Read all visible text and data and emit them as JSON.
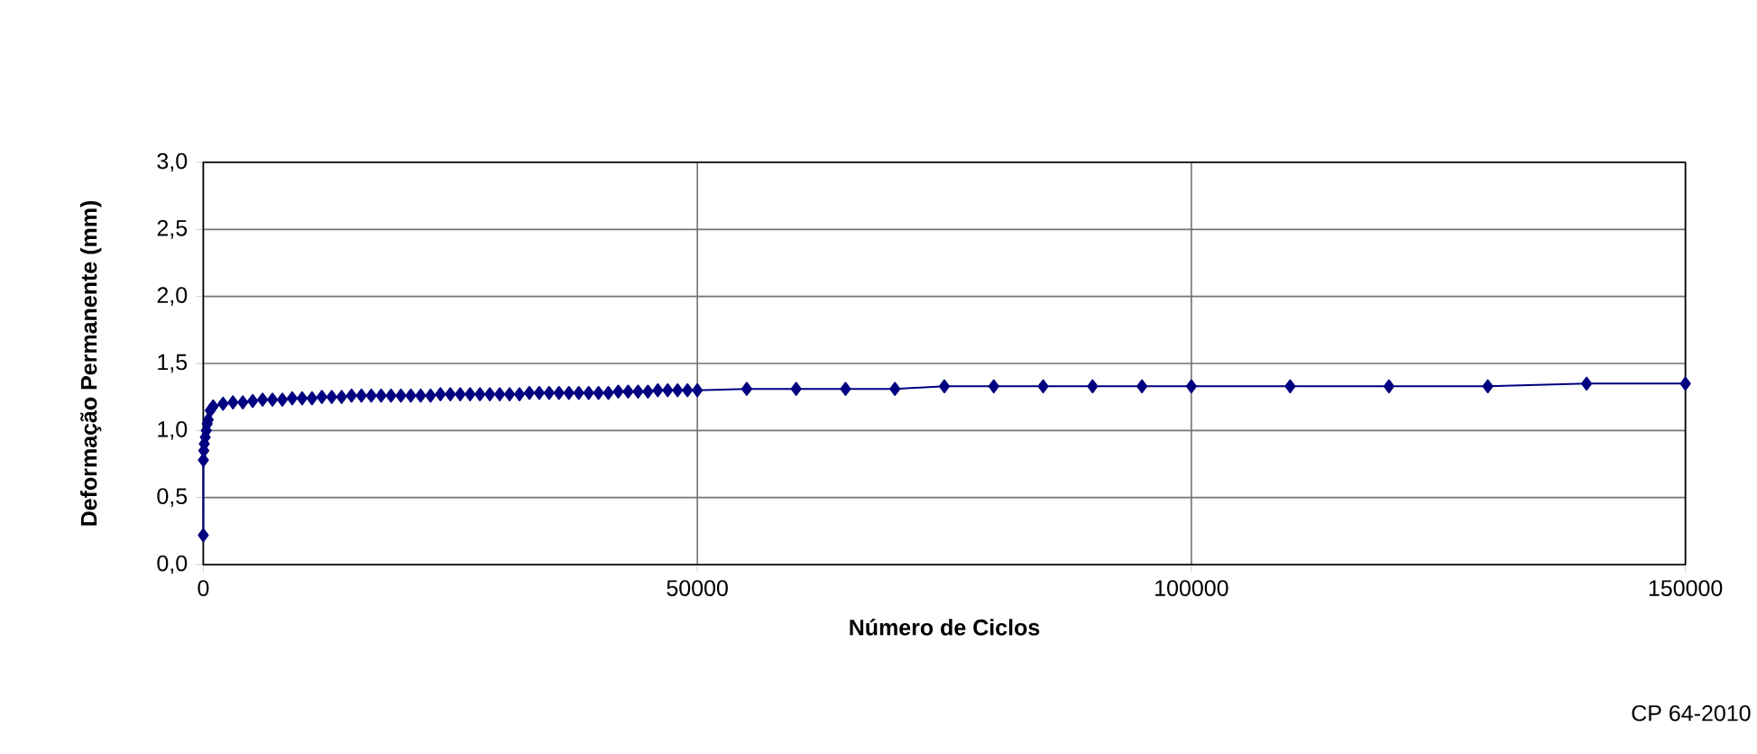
{
  "chart_data": {
    "type": "line",
    "xlabel": "Número de Ciclos",
    "ylabel": "Deformação Permanente (mm)",
    "annotations": [
      "CP 64-2010"
    ],
    "series": [
      {
        "color": "#000080",
        "x": [
          1,
          10,
          50,
          100,
          200,
          300,
          400,
          500,
          700,
          1000,
          2000,
          3000,
          4000,
          5000,
          6000,
          7000,
          8000,
          9000,
          10000,
          11000,
          12000,
          13000,
          14000,
          15000,
          16000,
          17000,
          18000,
          19000,
          20000,
          21000,
          22000,
          23000,
          24000,
          25000,
          26000,
          27000,
          28000,
          29000,
          30000,
          31000,
          32000,
          33000,
          34000,
          35000,
          36000,
          37000,
          38000,
          39000,
          40000,
          41000,
          42000,
          43000,
          44000,
          45000,
          46000,
          47000,
          48000,
          49000,
          50000,
          55000,
          60000,
          65000,
          70000,
          75000,
          80000,
          85000,
          90000,
          95000,
          100000,
          110000,
          120000,
          130000,
          140000,
          150000
        ],
        "values": [
          0.22,
          0.78,
          0.85,
          0.9,
          0.95,
          1.0,
          1.05,
          1.08,
          1.15,
          1.18,
          1.2,
          1.21,
          1.21,
          1.22,
          1.23,
          1.23,
          1.23,
          1.24,
          1.24,
          1.24,
          1.25,
          1.25,
          1.25,
          1.26,
          1.26,
          1.26,
          1.26,
          1.26,
          1.26,
          1.26,
          1.26,
          1.26,
          1.27,
          1.27,
          1.27,
          1.27,
          1.27,
          1.27,
          1.27,
          1.27,
          1.27,
          1.28,
          1.28,
          1.28,
          1.28,
          1.28,
          1.28,
          1.28,
          1.28,
          1.28,
          1.29,
          1.29,
          1.29,
          1.29,
          1.3,
          1.3,
          1.3,
          1.3,
          1.3,
          1.31,
          1.31,
          1.31,
          1.31,
          1.33,
          1.33,
          1.33,
          1.33,
          1.33,
          1.33,
          1.33,
          1.33,
          1.33,
          1.35,
          1.35
        ]
      }
    ],
    "xlim": [
      0,
      150000
    ],
    "ylim": [
      0,
      3
    ],
    "xticks": [
      0,
      50000,
      100000,
      150000
    ],
    "yticks": [
      {
        "value": 0,
        "label": "0,0"
      },
      {
        "value": 0.5,
        "label": "0,5"
      },
      {
        "value": 1,
        "label": "1,0"
      },
      {
        "value": 1.5,
        "label": "1,5"
      },
      {
        "value": 2,
        "label": "2,0"
      },
      {
        "value": 2.5,
        "label": "2,5"
      },
      {
        "value": 3,
        "label": "3,0"
      }
    ],
    "grid": true,
    "marker": "diamond",
    "line_style": "solid"
  }
}
